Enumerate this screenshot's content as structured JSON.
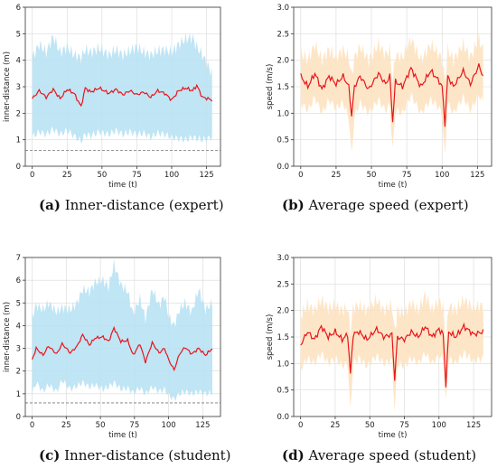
{
  "captions": [
    {
      "tag": "(a)",
      "text": "Inner-distance (expert)"
    },
    {
      "tag": "(b)",
      "text": "Average speed (expert)"
    },
    {
      "tag": "(c)",
      "text": "Inner-distance (student)"
    },
    {
      "tag": "(d)",
      "text": "Average speed (student)"
    }
  ],
  "colors": {
    "line": "#e8141c",
    "band_distance": "#b9e2f3",
    "band_speed": "#fde3c1",
    "reference": "#777777",
    "grid": "#d9d9d9"
  },
  "chart_data": [
    {
      "id": "a",
      "type": "line",
      "xlabel": "time (t)",
      "ylabel": "inner-distance (m)",
      "xlim": [
        -5,
        135
      ],
      "ylim": [
        0,
        6
      ],
      "xticks": [
        0,
        25,
        50,
        75,
        100,
        125
      ],
      "yticks": [
        0,
        1,
        2,
        3,
        4,
        5,
        6
      ],
      "grid": true,
      "n": 130,
      "reference_line": 0.6,
      "knots_x": [
        0,
        5,
        10,
        15,
        20,
        25,
        30,
        35,
        38,
        42,
        48,
        55,
        60,
        65,
        70,
        75,
        80,
        85,
        90,
        95,
        100,
        105,
        110,
        115,
        118,
        122,
        126,
        129
      ],
      "mean": [
        2.55,
        2.85,
        2.6,
        2.9,
        2.55,
        2.9,
        2.75,
        2.25,
        2.95,
        2.8,
        2.95,
        2.75,
        2.9,
        2.7,
        2.85,
        2.7,
        2.8,
        2.6,
        2.85,
        2.75,
        2.5,
        2.85,
        2.95,
        2.85,
        3.05,
        2.6,
        2.55,
        2.5
      ],
      "upper": [
        4.1,
        4.6,
        4.3,
        4.9,
        4.3,
        4.5,
        4.2,
        4.1,
        4.4,
        4.3,
        4.45,
        4.2,
        4.4,
        4.2,
        4.35,
        4.5,
        4.3,
        4.2,
        4.35,
        4.4,
        4.3,
        4.6,
        4.8,
        4.85,
        4.5,
        4.2,
        3.8,
        3.5
      ],
      "lower": [
        1.1,
        1.3,
        1.2,
        1.4,
        1.2,
        1.35,
        1.15,
        0.95,
        1.2,
        1.15,
        1.3,
        1.2,
        1.35,
        1.2,
        1.3,
        1.2,
        1.25,
        1.1,
        1.25,
        1.2,
        1.1,
        1.05,
        1.0,
        1.1,
        1.05,
        1.0,
        1.05,
        1.1
      ]
    },
    {
      "id": "b",
      "type": "line",
      "xlabel": "time (t)",
      "ylabel": "speed (m/s)",
      "xlim": [
        -5,
        135
      ],
      "ylim": [
        0,
        3.0
      ],
      "xticks": [
        0,
        25,
        50,
        75,
        100,
        125
      ],
      "yticks": [
        0.0,
        0.5,
        1.0,
        1.5,
        2.0,
        2.5,
        3.0
      ],
      "grid": true,
      "n": 130,
      "knots_x": [
        0,
        5,
        10,
        15,
        20,
        25,
        30,
        34,
        36,
        38,
        42,
        48,
        55,
        60,
        63,
        65,
        67,
        72,
        78,
        85,
        92,
        98,
        100,
        102,
        104,
        108,
        115,
        120,
        126,
        129
      ],
      "mean": [
        1.7,
        1.5,
        1.75,
        1.45,
        1.7,
        1.55,
        1.7,
        1.5,
        0.95,
        1.5,
        1.7,
        1.45,
        1.75,
        1.55,
        1.7,
        0.85,
        1.6,
        1.5,
        1.85,
        1.5,
        1.8,
        1.6,
        1.5,
        0.8,
        1.7,
        1.5,
        1.8,
        1.55,
        1.9,
        1.7
      ],
      "upper": [
        2.15,
        2.0,
        2.3,
        2.0,
        2.2,
        2.05,
        2.2,
        2.05,
        1.7,
        2.05,
        2.25,
        2.0,
        2.3,
        2.1,
        2.2,
        1.6,
        2.1,
        2.05,
        2.4,
        2.0,
        2.3,
        2.1,
        2.0,
        1.6,
        2.2,
        2.0,
        2.3,
        2.05,
        2.4,
        2.2
      ],
      "lower": [
        1.2,
        1.05,
        1.3,
        1.0,
        1.25,
        1.1,
        1.2,
        0.9,
        0.2,
        0.95,
        1.2,
        1.0,
        1.25,
        1.05,
        1.15,
        0.3,
        1.05,
        1.0,
        1.35,
        1.0,
        1.25,
        1.1,
        0.95,
        0.15,
        1.2,
        1.0,
        1.3,
        1.05,
        1.35,
        1.2
      ]
    },
    {
      "id": "c",
      "type": "line",
      "xlabel": "time (t)",
      "ylabel": "inner-distance (m)",
      "xlim": [
        -5,
        138
      ],
      "ylim": [
        0,
        7
      ],
      "xticks": [
        0,
        25,
        50,
        75,
        100,
        125
      ],
      "yticks": [
        0,
        1,
        2,
        3,
        4,
        5,
        6,
        7
      ],
      "grid": true,
      "n": 133,
      "reference_line": 0.6,
      "knots_x": [
        0,
        3,
        8,
        12,
        18,
        22,
        28,
        33,
        37,
        42,
        46,
        52,
        56,
        60,
        65,
        70,
        74,
        79,
        83,
        88,
        93,
        97,
        100,
        104,
        108,
        112,
        117,
        122,
        127,
        132
      ],
      "mean": [
        2.5,
        3.0,
        2.7,
        3.1,
        2.75,
        3.2,
        2.8,
        3.1,
        3.6,
        3.15,
        3.45,
        3.5,
        3.3,
        3.9,
        3.3,
        3.35,
        2.7,
        3.2,
        2.4,
        3.25,
        2.8,
        3.0,
        2.5,
        2.05,
        2.75,
        3.05,
        2.75,
        3.0,
        2.7,
        3.0
      ],
      "upper": [
        4.4,
        4.9,
        4.7,
        5.0,
        4.6,
        4.8,
        4.7,
        5.0,
        5.6,
        5.5,
        5.9,
        6.0,
        5.7,
        6.7,
        5.8,
        5.5,
        4.5,
        5.2,
        4.3,
        5.6,
        4.9,
        5.3,
        4.4,
        4.0,
        4.7,
        5.0,
        4.6,
        5.6,
        4.7,
        5.0
      ],
      "lower": [
        1.0,
        1.5,
        1.1,
        1.4,
        1.1,
        1.6,
        1.2,
        1.35,
        1.5,
        1.3,
        1.4,
        1.2,
        1.3,
        1.5,
        1.2,
        1.25,
        1.05,
        1.25,
        1.0,
        1.3,
        1.1,
        1.2,
        0.95,
        0.75,
        1.0,
        1.1,
        1.0,
        1.1,
        1.0,
        1.05
      ]
    },
    {
      "id": "d",
      "type": "line",
      "xlabel": "time (t)",
      "ylabel": "speed (m/s)",
      "xlim": [
        -5,
        138
      ],
      "ylim": [
        0,
        3.0
      ],
      "xticks": [
        0,
        25,
        50,
        75,
        100,
        125
      ],
      "yticks": [
        0.0,
        0.5,
        1.0,
        1.5,
        2.0,
        2.5,
        3.0
      ],
      "grid": true,
      "n": 133,
      "knots_x": [
        0,
        5,
        10,
        15,
        20,
        25,
        30,
        34,
        36,
        38,
        42,
        48,
        55,
        60,
        66,
        68,
        70,
        75,
        80,
        85,
        90,
        95,
        100,
        103,
        105,
        107,
        112,
        118,
        125,
        132
      ],
      "mean": [
        1.35,
        1.6,
        1.45,
        1.7,
        1.5,
        1.6,
        1.45,
        1.55,
        0.8,
        1.55,
        1.6,
        1.45,
        1.65,
        1.5,
        1.55,
        0.7,
        1.5,
        1.45,
        1.6,
        1.5,
        1.7,
        1.5,
        1.65,
        1.55,
        0.6,
        1.6,
        1.5,
        1.7,
        1.55,
        1.6
      ],
      "upper": [
        1.9,
        2.1,
        2.0,
        2.2,
        2.05,
        2.1,
        2.0,
        2.05,
        1.6,
        2.05,
        2.1,
        2.0,
        2.2,
        2.0,
        2.1,
        1.6,
        2.0,
        1.95,
        2.15,
        2.0,
        2.3,
        2.0,
        2.2,
        2.05,
        1.4,
        2.1,
        2.0,
        2.2,
        2.05,
        2.1
      ],
      "lower": [
        0.9,
        1.1,
        1.0,
        1.2,
        1.0,
        1.1,
        0.95,
        1.0,
        0.1,
        1.0,
        1.1,
        0.95,
        1.15,
        1.0,
        1.05,
        0.1,
        1.0,
        0.95,
        1.1,
        1.0,
        1.2,
        1.0,
        1.15,
        1.05,
        0.25,
        1.1,
        1.0,
        1.2,
        1.05,
        1.1
      ]
    }
  ]
}
